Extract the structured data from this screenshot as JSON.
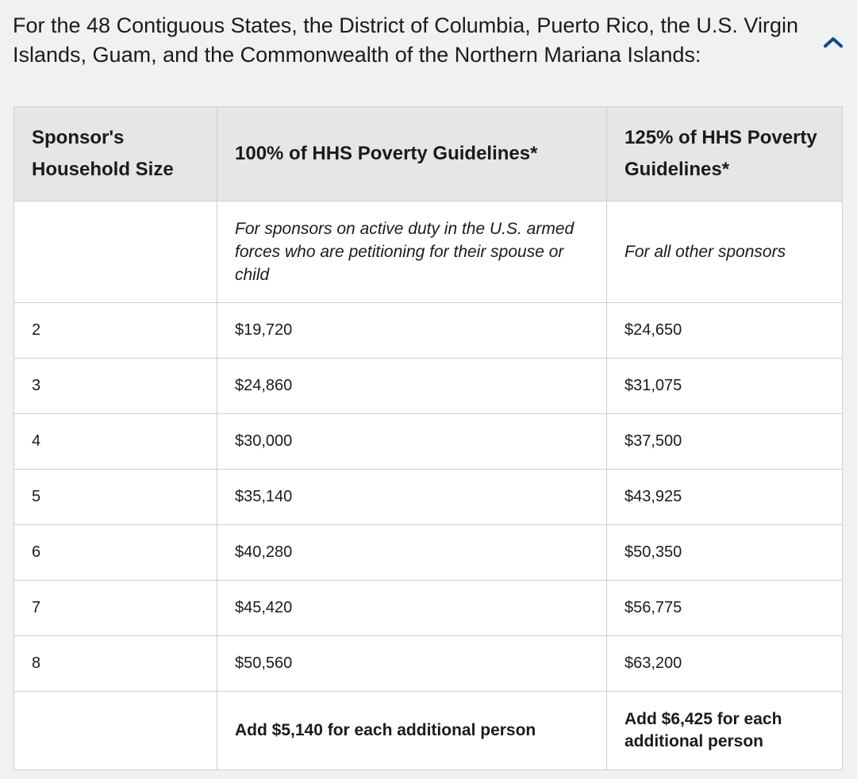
{
  "section": {
    "heading": "For the 48 Contiguous States, the District of Columbia, Puerto Rico, the U.S. Virgin Islands, Guam, and the Commonwealth of the Northern Mariana Islands:",
    "toggle_icon": "chevron-up-icon",
    "accent_color": "#0b4d8c"
  },
  "table": {
    "headers": {
      "household_size": "Sponsor's Household Size",
      "hhs_100": "100% of HHS Poverty Guidelines*",
      "hhs_125": "125% of HHS Poverty Guidelines*"
    },
    "notes": {
      "household_size": "",
      "hhs_100": "For sponsors on active duty in the U.S. armed forces who are petitioning for their spouse or child",
      "hhs_125": "For all other sponsors"
    },
    "rows": [
      {
        "size": "2",
        "hhs_100": "$19,720",
        "hhs_125": "$24,650"
      },
      {
        "size": "3",
        "hhs_100": "$24,860",
        "hhs_125": "$31,075"
      },
      {
        "size": "4",
        "hhs_100": "$30,000",
        "hhs_125": "$37,500"
      },
      {
        "size": "5",
        "hhs_100": "$35,140",
        "hhs_125": "$43,925"
      },
      {
        "size": "6",
        "hhs_100": "$40,280",
        "hhs_125": "$50,350"
      },
      {
        "size": "7",
        "hhs_100": "$45,420",
        "hhs_125": "$56,775"
      },
      {
        "size": "8",
        "hhs_100": "$50,560",
        "hhs_125": "$63,200"
      }
    ],
    "additional": {
      "household_size": "",
      "hhs_100": "Add $5,140 for each additional person",
      "hhs_125": "Add $6,425 for each additional person"
    }
  }
}
